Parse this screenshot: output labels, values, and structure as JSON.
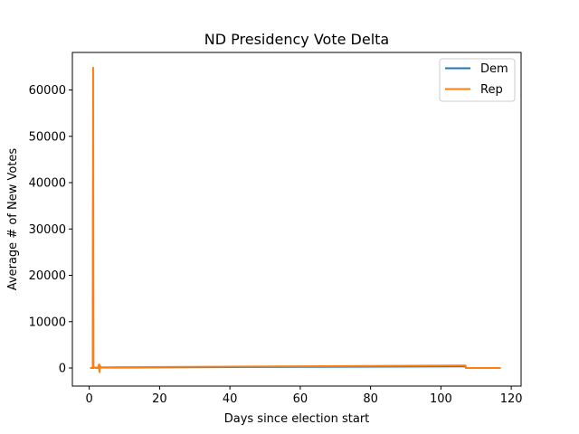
{
  "chart_data": {
    "type": "line",
    "title": "ND Presidency Vote Delta",
    "xlabel": "Days since election start",
    "ylabel": "Average # of New Votes",
    "xlim": [
      -4.8,
      122.8
    ],
    "ylim": [
      -3900,
      68100
    ],
    "xticks": [
      0,
      20,
      40,
      60,
      80,
      100,
      120
    ],
    "yticks": [
      0,
      10000,
      20000,
      30000,
      40000,
      50000,
      60000
    ],
    "grid": false,
    "legend_position": "top-right",
    "series": [
      {
        "name": "Dem",
        "color": "#1f77b4",
        "x": [
          0.3,
          1.0,
          1.1,
          1.15,
          1.2,
          1.3,
          2.5,
          2.8,
          2.9,
          3.0,
          3.2,
          107.0,
          107.1,
          117.0
        ],
        "y": [
          0,
          0,
          41000,
          0,
          200,
          100,
          0,
          600,
          -700,
          400,
          100,
          350,
          0,
          0
        ]
      },
      {
        "name": "Rep",
        "color": "#ff7f0e",
        "x": [
          0.3,
          1.0,
          1.1,
          1.2,
          1.3,
          2.5,
          2.8,
          2.9,
          3.0,
          3.2,
          107.0,
          107.1,
          117.0
        ],
        "y": [
          0,
          0,
          64800,
          300,
          100,
          0,
          800,
          -900,
          600,
          150,
          550,
          0,
          0
        ]
      }
    ]
  }
}
